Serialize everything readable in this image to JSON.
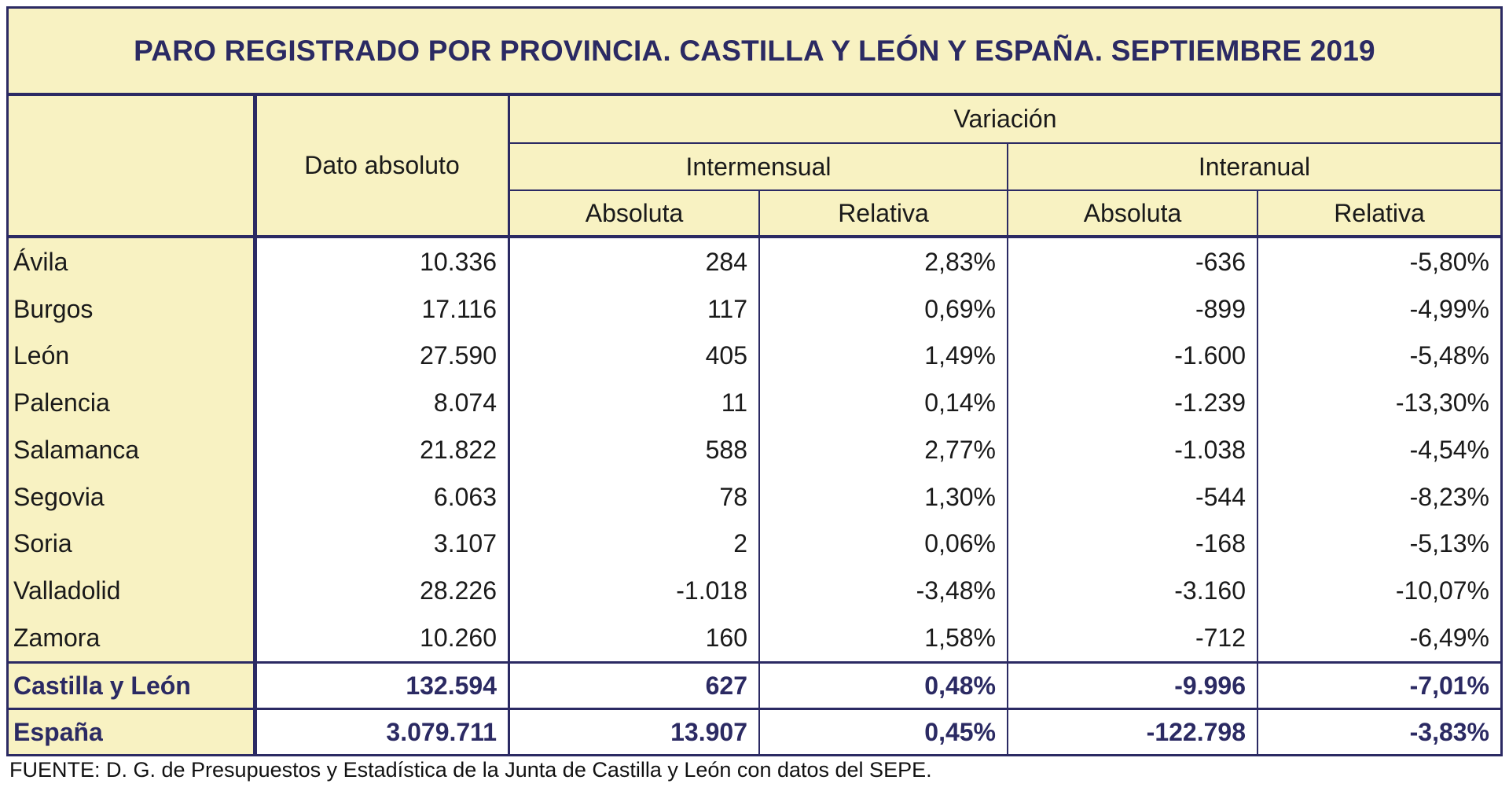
{
  "title": "PARO REGISTRADO POR PROVINCIA. CASTILLA Y LEÓN Y ESPAÑA. SEPTIEMBRE 2019",
  "headers": {
    "dato_absoluto": "Dato absoluto",
    "variacion": "Variación",
    "intermensual": "Intermensual",
    "interanual": "Interanual",
    "absoluta": "Absoluta",
    "relativa": "Relativa"
  },
  "rows": [
    {
      "name": "Ávila",
      "dato": "10.336",
      "im_abs": "284",
      "im_rel": "2,83%",
      "ia_abs": "-636",
      "ia_rel": "-5,80%"
    },
    {
      "name": "Burgos",
      "dato": "17.116",
      "im_abs": "117",
      "im_rel": "0,69%",
      "ia_abs": "-899",
      "ia_rel": "-4,99%"
    },
    {
      "name": "León",
      "dato": "27.590",
      "im_abs": "405",
      "im_rel": "1,49%",
      "ia_abs": "-1.600",
      "ia_rel": "-5,48%"
    },
    {
      "name": "Palencia",
      "dato": "8.074",
      "im_abs": "11",
      "im_rel": "0,14%",
      "ia_abs": "-1.239",
      "ia_rel": "-13,30%"
    },
    {
      "name": "Salamanca",
      "dato": "21.822",
      "im_abs": "588",
      "im_rel": "2,77%",
      "ia_abs": "-1.038",
      "ia_rel": "-4,54%"
    },
    {
      "name": "Segovia",
      "dato": "6.063",
      "im_abs": "78",
      "im_rel": "1,30%",
      "ia_abs": "-544",
      "ia_rel": "-8,23%"
    },
    {
      "name": "Soria",
      "dato": "3.107",
      "im_abs": "2",
      "im_rel": "0,06%",
      "ia_abs": "-168",
      "ia_rel": "-5,13%"
    },
    {
      "name": "Valladolid",
      "dato": "28.226",
      "im_abs": "-1.018",
      "im_rel": "-3,48%",
      "ia_abs": "-3.160",
      "ia_rel": "-10,07%"
    },
    {
      "name": "Zamora",
      "dato": "10.260",
      "im_abs": "160",
      "im_rel": "1,58%",
      "ia_abs": "-712",
      "ia_rel": "-6,49%"
    }
  ],
  "totals": [
    {
      "name": "Castilla y León",
      "dato": "132.594",
      "im_abs": "627",
      "im_rel": "0,48%",
      "ia_abs": "-9.996",
      "ia_rel": "-7,01%"
    },
    {
      "name": "España",
      "dato": "3.079.711",
      "im_abs": "13.907",
      "im_rel": "0,45%",
      "ia_abs": "-122.798",
      "ia_rel": "-3,83%"
    }
  ],
  "source": "FUENTE: D. G. de Presupuestos y Estadística de la Junta de Castilla y León con datos del SEPE.",
  "colors": {
    "accent": "#2b2a63",
    "header_bg": "#f8f2c2",
    "cell_bg": "#ffffff"
  }
}
